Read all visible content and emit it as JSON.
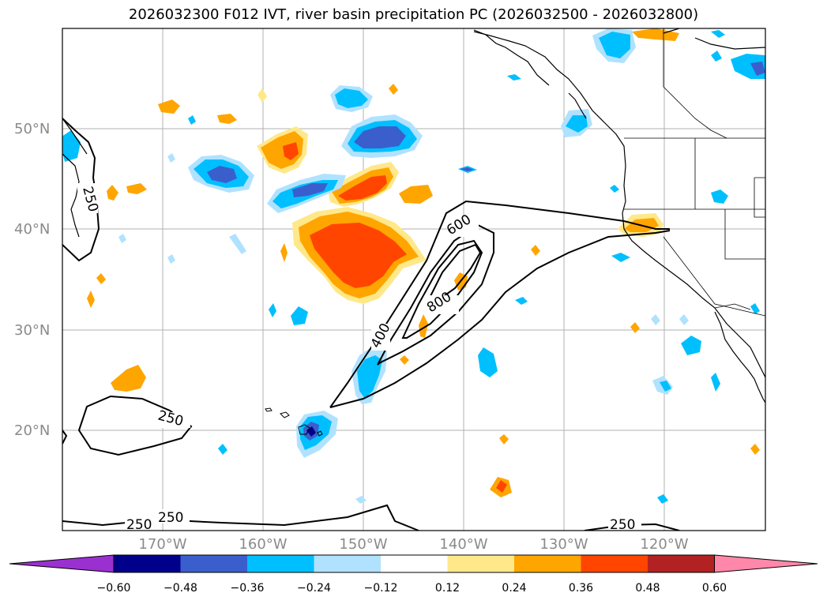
{
  "title": "2026032300 F012 IVT, river basin precipitation PC (2026032500 - 2026032800)",
  "lat_labels": [
    "50°N",
    "40°N",
    "30°N",
    "20°N"
  ],
  "lon_labels": [
    "170°W",
    "160°W",
    "150°W",
    "140°W",
    "130°W",
    "120°W"
  ],
  "contour_labels": [
    "250",
    "250",
    "250",
    "250",
    "250",
    "400",
    "600",
    "800"
  ],
  "colorbar": {
    "colors": [
      "#9b30d0",
      "#00008b",
      "#3a5fcd",
      "#00bfff",
      "#b0e2ff",
      "#ffffff",
      "#ffe88a",
      "#ffa500",
      "#ff4500",
      "#b22222",
      "#ff88aa"
    ],
    "ticks": [
      "−0.60",
      "−0.48",
      "−0.36",
      "−0.24",
      "−0.12",
      "0.12",
      "0.24",
      "0.36",
      "0.48",
      "0.60"
    ]
  }
}
